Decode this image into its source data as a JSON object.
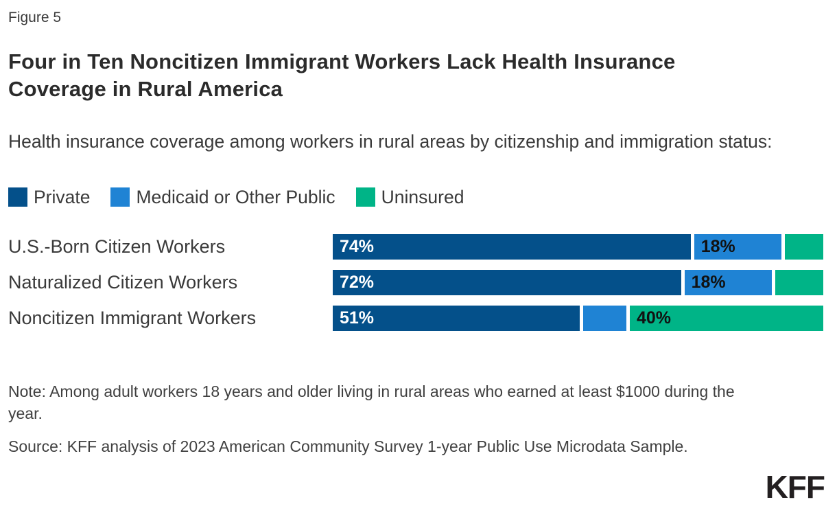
{
  "figure_label": "Figure 5",
  "title": "Four in Ten Noncitizen Immigrant Workers Lack Health Insurance Coverage in Rural America",
  "subtitle": "Health insurance coverage among workers in rural areas by citizenship and immigration status:",
  "colors": {
    "private": "#04508A",
    "medicaid": "#1F83D4",
    "uninsured": "#00B487",
    "label_on_dark": "#FFFFFF",
    "label_on_light": "#111111"
  },
  "legend": [
    {
      "label": "Private",
      "color_key": "private"
    },
    {
      "label": "Medicaid or Other Public",
      "color_key": "medicaid"
    },
    {
      "label": "Uninsured",
      "color_key": "uninsured"
    }
  ],
  "chart_data": {
    "type": "bar",
    "orientation": "horizontal",
    "stacked": true,
    "legend_position": "top",
    "xlim": [
      0,
      100
    ],
    "categories": [
      "U.S.-Born Citizen Workers",
      "Naturalized Citizen Workers",
      "Noncitizen Immigrant Workers"
    ],
    "series": [
      {
        "name": "Private",
        "color_key": "private",
        "values": [
          74,
          72,
          51
        ],
        "labels": [
          "74%",
          "72%",
          "51%"
        ],
        "label_color_key": "label_on_dark"
      },
      {
        "name": "Medicaid or Other Public",
        "color_key": "medicaid",
        "values": [
          18,
          18,
          9
        ],
        "labels": [
          "18%",
          "18%",
          ""
        ],
        "label_color_key": "label_on_light"
      },
      {
        "name": "Uninsured",
        "color_key": "uninsured",
        "values": [
          8,
          10,
          40
        ],
        "labels": [
          "",
          "",
          "40%"
        ],
        "label_color_key": "label_on_light"
      }
    ]
  },
  "note": "Note: Among adult workers 18 years and older living in rural areas who earned at least $1000 during the year.",
  "source": "Source: KFF analysis of 2023 American Community Survey 1-year Public Use Microdata Sample.",
  "logo": "KFF"
}
